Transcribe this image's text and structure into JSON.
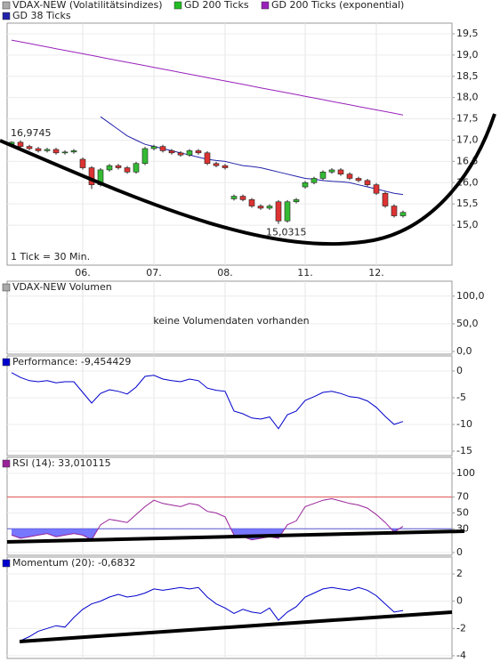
{
  "chart_data": [
    {
      "type": "candlestick",
      "name": "VDAX-NEW (Volatilitätsindizes)",
      "legend_color": "#aaaaaa",
      "up_color": "#33bb33",
      "down_color": "#dd3333",
      "categories": [
        null,
        null,
        null,
        null,
        null,
        null,
        null,
        null,
        "06.",
        null,
        null,
        null,
        null,
        null,
        null,
        null,
        "07.",
        null,
        null,
        null,
        null,
        null,
        null,
        null,
        "08.",
        null,
        null,
        null,
        null,
        null,
        null,
        null,
        null,
        "11.",
        null,
        null,
        null,
        null,
        null,
        null,
        null,
        "12.",
        null,
        null,
        null,
        null,
        null,
        null,
        null,
        null
      ],
      "open": [
        16.9,
        16.95,
        16.85,
        16.8,
        16.75,
        16.78,
        16.7,
        16.72,
        16.55,
        16.35,
        15.95,
        16.3,
        16.4,
        16.35,
        16.25,
        16.45,
        16.8,
        16.85,
        16.75,
        16.7,
        16.65,
        16.75,
        16.7,
        16.45,
        16.4,
        15.62,
        15.68,
        15.6,
        15.45,
        15.4,
        15.55,
        15.1,
        15.55,
        15.9,
        16.0,
        16.1,
        16.25,
        16.3,
        16.2,
        16.1,
        16.05,
        15.95,
        15.75,
        15.45,
        15.22,
        null,
        null,
        null,
        null,
        null
      ],
      "high": [
        16.97,
        16.99,
        16.89,
        16.84,
        16.82,
        16.82,
        16.76,
        16.79,
        16.59,
        16.39,
        16.34,
        16.44,
        16.44,
        16.39,
        16.49,
        16.84,
        16.89,
        16.89,
        16.79,
        16.74,
        16.79,
        16.79,
        16.74,
        16.49,
        16.44,
        15.72,
        15.72,
        15.64,
        15.49,
        15.49,
        15.59,
        15.59,
        15.64,
        16.04,
        16.14,
        16.29,
        16.34,
        16.34,
        16.24,
        16.14,
        16.09,
        15.99,
        15.79,
        15.49,
        15.34,
        null,
        null,
        null,
        null,
        null
      ],
      "low": [
        16.86,
        16.81,
        16.76,
        16.71,
        16.71,
        16.66,
        16.66,
        16.68,
        16.31,
        15.85,
        15.91,
        16.26,
        16.31,
        16.21,
        16.21,
        16.41,
        16.76,
        16.71,
        16.66,
        16.61,
        16.61,
        16.66,
        16.41,
        16.36,
        16.31,
        15.58,
        15.56,
        15.41,
        15.36,
        15.36,
        15.03,
        15.06,
        15.51,
        15.86,
        15.96,
        16.06,
        16.21,
        16.16,
        16.06,
        16.01,
        15.91,
        15.71,
        15.41,
        15.18,
        15.18,
        null,
        null,
        null,
        null,
        null
      ],
      "close": [
        16.95,
        16.85,
        16.8,
        16.75,
        16.78,
        16.7,
        16.72,
        16.75,
        16.35,
        15.95,
        16.3,
        16.4,
        16.35,
        16.25,
        16.45,
        16.8,
        16.85,
        16.75,
        16.7,
        16.65,
        16.75,
        16.7,
        16.45,
        16.4,
        16.35,
        15.68,
        15.6,
        15.45,
        15.4,
        15.45,
        15.1,
        15.55,
        15.6,
        16.0,
        16.1,
        16.25,
        16.3,
        16.2,
        16.1,
        16.05,
        15.95,
        15.75,
        15.45,
        15.22,
        15.3,
        null,
        null,
        null,
        null,
        null
      ],
      "series": [
        {
          "name": "GD 200 Ticks",
          "color": "#22bb22",
          "values": [
            null,
            null,
            null,
            null,
            null,
            null,
            null,
            null,
            null,
            null,
            null,
            null,
            null,
            null,
            null,
            null,
            null,
            null,
            null,
            null,
            null,
            null,
            null,
            null,
            null,
            null,
            null,
            null,
            null,
            null,
            null,
            null,
            null,
            null,
            null,
            null,
            null,
            null,
            null,
            null,
            null,
            null,
            null,
            null,
            null,
            null,
            null,
            null,
            null,
            null
          ]
        },
        {
          "name": "GD 200 Ticks (exponential)",
          "color": "#9922bb",
          "values": [
            19.35,
            19.31,
            19.27,
            19.23,
            19.19,
            19.15,
            19.11,
            19.07,
            19.03,
            18.99,
            18.95,
            18.91,
            18.87,
            18.83,
            18.79,
            18.75,
            18.71,
            18.67,
            18.63,
            18.59,
            18.55,
            18.51,
            18.47,
            18.43,
            18.39,
            18.35,
            18.31,
            18.27,
            18.23,
            18.19,
            18.15,
            18.11,
            18.07,
            18.03,
            17.99,
            17.95,
            17.91,
            17.87,
            17.83,
            17.79,
            17.75,
            17.71,
            17.67,
            17.63,
            17.59,
            null,
            null,
            null,
            null,
            null
          ]
        },
        {
          "name": "GD 38 Ticks",
          "color": "#2222aa",
          "values": [
            null,
            null,
            null,
            null,
            null,
            null,
            null,
            null,
            null,
            null,
            17.55,
            17.4,
            17.25,
            17.1,
            17.0,
            16.9,
            16.85,
            16.8,
            16.75,
            16.7,
            16.65,
            16.6,
            16.55,
            16.52,
            16.5,
            16.45,
            16.4,
            16.38,
            16.35,
            16.3,
            16.25,
            16.2,
            16.15,
            16.1,
            16.08,
            16.05,
            16.03,
            16.02,
            16.0,
            15.95,
            15.9,
            15.85,
            15.8,
            15.75,
            15.72,
            null,
            null,
            null,
            null,
            null
          ]
        }
      ],
      "ylim": [
        14.06,
        19.75
      ],
      "yticks": [
        {
          "value": 15,
          "label": "15,0"
        },
        {
          "value": 15.5,
          "label": "15,5"
        },
        {
          "value": 16,
          "label": "16,0"
        },
        {
          "value": 16.5,
          "label": "16,5"
        },
        {
          "value": 17,
          "label": "17,0"
        },
        {
          "value": 17.5,
          "label": "17,5"
        },
        {
          "value": 18,
          "label": "18,0"
        },
        {
          "value": 18.5,
          "label": "18,5"
        },
        {
          "value": 19,
          "label": "19,0"
        },
        {
          "value": 19.5,
          "label": "19,5"
        }
      ],
      "max_label": "16,9745",
      "min_label": "15,0315",
      "note": "1 Tick = 30 Min."
    },
    {
      "type": "volume",
      "name": "VDAX-NEW Volumen",
      "legend_color": "#aaaaaa",
      "annotation": "keine Volumendaten vorhanden",
      "ylim": [
        -4.8,
        127
      ],
      "yticks": [
        {
          "value": 0,
          "label": "0,0"
        },
        {
          "value": 50,
          "label": "50,0"
        },
        {
          "value": 100,
          "label": "100,0"
        }
      ]
    },
    {
      "type": "line",
      "ylim": [
        -15.83,
        2.83
      ],
      "yticks": [
        -15,
        -10,
        -5,
        0
      ],
      "series": [
        {
          "name": "Performance: -9,454429",
          "color": "#0000cc",
          "values": [
            -0.3,
            -1.2,
            -1.8,
            -2.0,
            -1.8,
            -2.2,
            -2.0,
            -2.0,
            -4.0,
            -6.0,
            -4.2,
            -3.5,
            -3.8,
            -4.3,
            -3.0,
            -1.0,
            -0.8,
            -1.5,
            -1.8,
            -2.0,
            -1.5,
            -1.8,
            -3.2,
            -3.6,
            -3.8,
            -7.5,
            -8.0,
            -8.8,
            -9.0,
            -8.6,
            -10.8,
            -8.2,
            -7.5,
            -5.5,
            -4.8,
            -4.0,
            -3.8,
            -4.2,
            -4.8,
            -5.0,
            -5.6,
            -6.8,
            -8.5,
            -10.0,
            -9.45,
            null,
            null,
            null,
            null,
            null
          ]
        }
      ]
    },
    {
      "type": "line",
      "ylim": [
        -3.4,
        120.2
      ],
      "yticks": [
        0,
        30,
        50,
        70,
        100
      ],
      "hlines": [
        {
          "value": 70,
          "color": "#e05050"
        },
        {
          "value": 30,
          "color": "#5555cc"
        }
      ],
      "fill_below": 30,
      "fill_color": "#7777ff",
      "series": [
        {
          "name": "RSI (14): 33,010115",
          "color": "#992299",
          "values": [
            22,
            18,
            20,
            22,
            24,
            20,
            22,
            24,
            22,
            16,
            35,
            42,
            40,
            38,
            48,
            58,
            66,
            62,
            60,
            58,
            62,
            60,
            52,
            50,
            45,
            22,
            20,
            16,
            18,
            20,
            18,
            35,
            40,
            58,
            62,
            66,
            68,
            65,
            62,
            60,
            56,
            48,
            38,
            26,
            33,
            null,
            null,
            null,
            null,
            null
          ]
        }
      ]
    },
    {
      "type": "line",
      "ylim": [
        -4.2,
        3.24
      ],
      "yticks": [
        -4,
        -2,
        0,
        2
      ],
      "series": [
        {
          "name": "Momentum (20): -0,6832",
          "color": "#0000cc",
          "values": [
            null,
            -2.9,
            -2.6,
            -2.2,
            -2.0,
            -1.8,
            -1.9,
            -1.2,
            -0.6,
            -0.2,
            0.0,
            0.3,
            0.5,
            0.3,
            0.4,
            0.6,
            0.9,
            0.8,
            0.9,
            1.0,
            0.9,
            1.0,
            0.3,
            -0.2,
            -0.5,
            -0.9,
            -0.6,
            -0.8,
            -0.9,
            -0.5,
            -1.4,
            -0.8,
            -0.4,
            0.3,
            0.6,
            0.9,
            1.0,
            0.9,
            0.8,
            1.0,
            0.8,
            0.4,
            -0.2,
            -0.8,
            -0.68,
            null,
            null,
            null,
            null,
            null
          ]
        }
      ]
    }
  ]
}
